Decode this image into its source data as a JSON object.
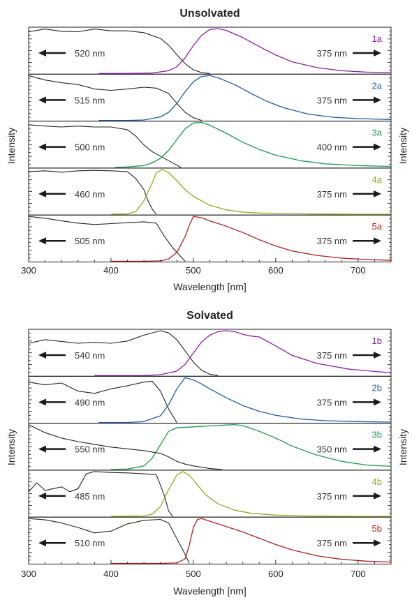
{
  "chart_data": [
    {
      "type": "line",
      "title": "Unsolvated",
      "xlabel": "Wavelength [nm]",
      "ylabel_left": "Intensity",
      "ylabel_right": "Intensity",
      "xlim": [
        300,
        740
      ],
      "xticks": [
        300,
        400,
        500,
        600,
        700
      ],
      "panels": [
        {
          "label": "1a",
          "color": "#8b1fa3",
          "excitation": {
            "wavelength_label": "520 nm",
            "direction": "left",
            "x": [
              300,
              320,
              340,
              360,
              380,
              400,
              420,
              440,
              460,
              470,
              480,
              490,
              500,
              510,
              520
            ],
            "y": [
              0.93,
              0.99,
              0.94,
              0.93,
              0.99,
              0.95,
              0.95,
              0.91,
              0.78,
              0.63,
              0.42,
              0.22,
              0.08,
              0.02,
              0
            ]
          },
          "emission": {
            "wavelength_label": "375 nm",
            "direction": "right",
            "x": [
              385,
              420,
              450,
              470,
              480,
              490,
              500,
              510,
              520,
              530,
              540,
              560,
              580,
              600,
              620,
              650,
              680,
              710,
              740
            ],
            "y": [
              0,
              0,
              0.01,
              0.06,
              0.15,
              0.35,
              0.62,
              0.85,
              0.98,
              1.0,
              0.96,
              0.8,
              0.6,
              0.41,
              0.26,
              0.13,
              0.06,
              0.03,
              0.02
            ]
          }
        },
        {
          "label": "2a",
          "color": "#1f5aa8",
          "excitation": {
            "wavelength_label": "515 nm",
            "direction": "left",
            "x": [
              300,
              320,
              340,
              360,
              380,
              400,
              420,
              440,
              455,
              470,
              480,
              490,
              500,
              510
            ],
            "y": [
              1.0,
              0.9,
              0.84,
              0.8,
              0.7,
              0.67,
              0.7,
              0.74,
              0.72,
              0.6,
              0.38,
              0.18,
              0.06,
              0
            ]
          },
          "emission": {
            "wavelength_label": "375 nm",
            "direction": "right",
            "x": [
              385,
              420,
              440,
              460,
              470,
              480,
              490,
              500,
              510,
              520,
              530,
              550,
              570,
              590,
              610,
              640,
              670,
              700,
              740
            ],
            "y": [
              0,
              0,
              0.01,
              0.08,
              0.18,
              0.38,
              0.64,
              0.86,
              0.98,
              1.0,
              0.95,
              0.8,
              0.6,
              0.42,
              0.28,
              0.14,
              0.07,
              0.04,
              0.02
            ]
          }
        },
        {
          "label": "3a",
          "color": "#1b9a4a",
          "excitation": {
            "wavelength_label": "500 nm",
            "direction": "left",
            "x": [
              300,
              320,
              340,
              360,
              380,
              400,
              420,
              430,
              440,
              450,
              460,
              470,
              480,
              485
            ],
            "y": [
              0.95,
              0.92,
              0.9,
              0.92,
              0.9,
              0.9,
              0.84,
              0.7,
              0.5,
              0.35,
              0.25,
              0.15,
              0.05,
              0
            ]
          },
          "emission": {
            "wavelength_label": "400 nm",
            "direction": "right",
            "x": [
              405,
              420,
              440,
              450,
              460,
              470,
              480,
              490,
              500,
              510,
              520,
              540,
              560,
              580,
              600,
              630,
              660,
              700,
              740
            ],
            "y": [
              0,
              0.01,
              0.04,
              0.1,
              0.2,
              0.38,
              0.62,
              0.86,
              0.99,
              1.0,
              0.94,
              0.76,
              0.56,
              0.4,
              0.27,
              0.15,
              0.08,
              0.04,
              0.02
            ]
          }
        },
        {
          "label": "4a",
          "color": "#9aa51e",
          "excitation": {
            "wavelength_label": "460 nm",
            "direction": "left",
            "x": [
              300,
              320,
              340,
              360,
              380,
              400,
              420,
              430,
              440,
              445,
              450,
              455
            ],
            "y": [
              0.95,
              0.97,
              0.94,
              0.97,
              0.98,
              0.97,
              0.95,
              0.8,
              0.55,
              0.3,
              0.12,
              0
            ]
          },
          "emission": {
            "wavelength_label": "375 nm",
            "direction": "right",
            "x": [
              400,
              420,
              430,
              440,
              450,
              455,
              462,
              470,
              480,
              490,
              500,
              520,
              540,
              560,
              580,
              600,
              640,
              700,
              740
            ],
            "y": [
              0,
              0.01,
              0.06,
              0.3,
              0.7,
              0.92,
              1.0,
              0.93,
              0.75,
              0.55,
              0.4,
              0.2,
              0.1,
              0.05,
              0.03,
              0.02,
              0.01,
              0,
              0
            ]
          }
        },
        {
          "label": "5a",
          "color": "#b3201f",
          "excitation": {
            "wavelength_label": "505 nm",
            "direction": "left",
            "x": [
              300,
              320,
              340,
              360,
              380,
              400,
              420,
              440,
              455,
              465,
              475,
              485,
              490
            ],
            "y": [
              1.0,
              0.96,
              0.9,
              0.85,
              0.82,
              0.84,
              0.86,
              0.88,
              0.85,
              0.55,
              0.3,
              0.1,
              0
            ]
          },
          "emission": {
            "wavelength_label": "375 nm",
            "direction": "right",
            "x": [
              400,
              440,
              460,
              470,
              480,
              490,
              495,
              500,
              510,
              520,
              540,
              560,
              580,
              600,
              620,
              650,
              680,
              710,
              740
            ],
            "y": [
              0,
              0,
              0.01,
              0.05,
              0.2,
              0.55,
              0.8,
              1.0,
              0.97,
              0.9,
              0.78,
              0.64,
              0.48,
              0.34,
              0.23,
              0.13,
              0.07,
              0.04,
              0.02
            ]
          }
        }
      ]
    },
    {
      "type": "line",
      "title": "Solvated",
      "xlabel": "Wavelength [nm]",
      "ylabel_left": "Intensity",
      "ylabel_right": "Intensity",
      "xlim": [
        300,
        740
      ],
      "xticks": [
        300,
        400,
        500,
        600,
        700
      ],
      "panels": [
        {
          "label": "1b",
          "color": "#8b1fa3",
          "excitation": {
            "wavelength_label": "540 nm",
            "direction": "left",
            "x": [
              300,
              320,
              340,
              360,
              380,
              400,
              420,
              440,
              460,
              470,
              480,
              490,
              500,
              510,
              520,
              530
            ],
            "y": [
              0.72,
              0.8,
              0.76,
              0.72,
              0.74,
              0.72,
              0.77,
              0.9,
              1.0,
              0.95,
              0.8,
              0.55,
              0.3,
              0.12,
              0.03,
              0
            ]
          },
          "emission": {
            "wavelength_label": "375 nm",
            "direction": "right",
            "x": [
              380,
              440,
              460,
              480,
              490,
              500,
              510,
              520,
              530,
              540,
              550,
              560,
              570,
              580,
              600,
              620,
              650,
              690,
              740
            ],
            "y": [
              0,
              0,
              0.02,
              0.1,
              0.25,
              0.5,
              0.75,
              0.9,
              0.98,
              1.0,
              0.98,
              0.92,
              0.88,
              0.86,
              0.66,
              0.45,
              0.27,
              0.14,
              0.06
            ]
          }
        },
        {
          "label": "2b",
          "color": "#1f5aa8",
          "excitation": {
            "wavelength_label": "490 nm",
            "direction": "left",
            "x": [
              300,
              320,
              340,
              360,
              380,
              400,
              420,
              440,
              450,
              460,
              470,
              480
            ],
            "y": [
              0.9,
              0.84,
              0.88,
              0.7,
              0.65,
              0.75,
              0.82,
              0.9,
              0.92,
              0.7,
              0.3,
              0
            ]
          },
          "emission": {
            "wavelength_label": "375 nm",
            "direction": "right",
            "x": [
              385,
              420,
              440,
              460,
              470,
              480,
              490,
              500,
              510,
              520,
              540,
              560,
              580,
              600,
              630,
              660,
              700,
              740
            ],
            "y": [
              0,
              0,
              0.02,
              0.15,
              0.4,
              0.75,
              1.0,
              0.95,
              0.86,
              0.75,
              0.55,
              0.38,
              0.25,
              0.16,
              0.08,
              0.04,
              0.02,
              0.01
            ]
          }
        },
        {
          "label": "3b",
          "color": "#1b9a4a",
          "excitation": {
            "wavelength_label": "550 nm",
            "direction": "left",
            "x": [
              300,
              320,
              340,
              360,
              380,
              400,
              420,
              440,
              460,
              470,
              480,
              490,
              500,
              510,
              520,
              535
            ],
            "y": [
              1.0,
              0.82,
              0.7,
              0.62,
              0.56,
              0.5,
              0.46,
              0.42,
              0.36,
              0.28,
              0.18,
              0.12,
              0.08,
              0.05,
              0.02,
              0
            ]
          },
          "emission": {
            "wavelength_label": "350 nm",
            "direction": "right",
            "x": [
              400,
              420,
              440,
              450,
              460,
              470,
              480,
              500,
              520,
              540,
              550,
              560,
              580,
              600,
              620,
              650,
              680,
              710,
              740
            ],
            "y": [
              0,
              0.01,
              0.08,
              0.25,
              0.55,
              0.85,
              0.93,
              0.95,
              0.97,
              0.99,
              1.0,
              0.98,
              0.85,
              0.7,
              0.52,
              0.32,
              0.18,
              0.1,
              0.07
            ]
          }
        },
        {
          "label": "4b",
          "color": "#9aa51e",
          "excitation": {
            "wavelength_label": "485 nm",
            "direction": "left",
            "x": [
              300,
              310,
              320,
              340,
              350,
              360,
              370,
              380,
              400,
              420,
              440,
              455,
              460,
              465,
              470,
              475
            ],
            "y": [
              0.55,
              0.75,
              0.58,
              0.66,
              0.55,
              0.62,
              0.95,
              1.0,
              0.98,
              0.97,
              0.95,
              0.93,
              0.7,
              0.45,
              0.12,
              0
            ]
          },
          "emission": {
            "wavelength_label": "375 nm",
            "direction": "right",
            "x": [
              400,
              440,
              450,
              460,
              470,
              480,
              487,
              495,
              505,
              515,
              530,
              550,
              570,
              600,
              640,
              700,
              740
            ],
            "y": [
              0,
              0.01,
              0.05,
              0.22,
              0.6,
              0.92,
              1.0,
              0.92,
              0.7,
              0.48,
              0.28,
              0.14,
              0.07,
              0.03,
              0.01,
              0,
              0
            ]
          }
        },
        {
          "label": "5b",
          "color": "#b3201f",
          "excitation": {
            "wavelength_label": "510 nm",
            "direction": "left",
            "x": [
              300,
              320,
              340,
              360,
              380,
              400,
              420,
              440,
              460,
              470,
              480,
              490,
              495
            ],
            "y": [
              1.0,
              0.97,
              0.9,
              0.8,
              0.68,
              0.72,
              0.88,
              0.96,
              0.98,
              0.9,
              0.55,
              0.2,
              0
            ]
          },
          "emission": {
            "wavelength_label": "375 nm",
            "direction": "right",
            "x": [
              400,
              460,
              480,
              490,
              495,
              500,
              505,
              510,
              520,
              540,
              560,
              580,
              600,
              620,
              650,
              680,
              710,
              740
            ],
            "y": [
              0,
              0,
              0.01,
              0.1,
              0.4,
              0.8,
              0.98,
              1.0,
              0.94,
              0.82,
              0.7,
              0.56,
              0.42,
              0.3,
              0.17,
              0.09,
              0.05,
              0.03
            ]
          }
        }
      ]
    }
  ]
}
